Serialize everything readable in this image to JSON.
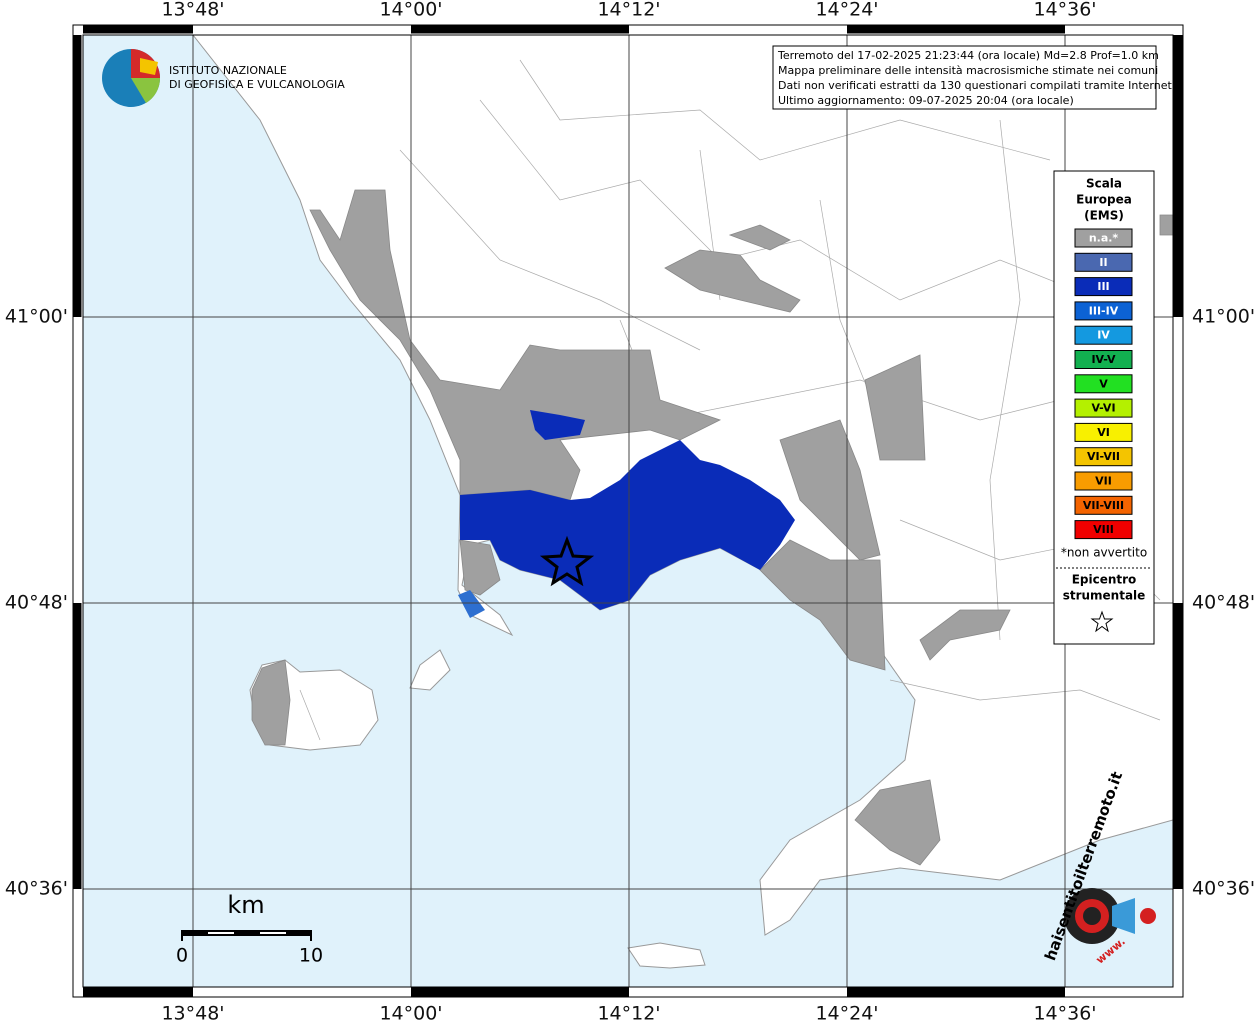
{
  "header": {
    "lines": [
      "Terremoto del 17-02-2025 21:23:44 (ora locale) Md=2.8 Prof=1.0 km",
      "Mappa preliminare delle intensità macrosismiche stimate nei comuni",
      "Dati non verificati estratti da 130 questionari compilati tramite Internet.",
      "Ultimo aggiornamento: 09-07-2025 20:04 (ora locale)"
    ]
  },
  "logo": {
    "lines": [
      "ISTITUTO NAZIONALE",
      "DI GEOFISICA E VULCANOLOGIA"
    ]
  },
  "longitudes": [
    "13°48'",
    "14°00'",
    "14°12'",
    "14°24'",
    "14°36'"
  ],
  "latitudes": [
    "41°00'",
    "40°48'",
    "40°36'"
  ],
  "legend": {
    "title": [
      "Scala",
      "Europea",
      "(EMS)"
    ],
    "items": [
      {
        "label": "n.a.*",
        "color": "#a0a0a0"
      },
      {
        "label": "II",
        "color": "#4a68b0"
      },
      {
        "label": "III",
        "color": "#0a2cb8"
      },
      {
        "label": "III-IV",
        "color": "#0c62d4"
      },
      {
        "label": "IV",
        "color": "#1499e0"
      },
      {
        "label": "IV-V",
        "color": "#12b050"
      },
      {
        "label": "V",
        "color": "#22e022"
      },
      {
        "label": "V-VI",
        "color": "#b4f000"
      },
      {
        "label": "VI",
        "color": "#f8f000"
      },
      {
        "label": "VI-VII",
        "color": "#f4c400"
      },
      {
        "label": "VII",
        "color": "#f89c00"
      },
      {
        "label": "VII-VIII",
        "color": "#f46400"
      },
      {
        "label": "VIII",
        "color": "#f00000"
      }
    ],
    "note": "*non avvertito",
    "epicenter": [
      "Epicentro",
      "strumentale"
    ]
  },
  "scale": {
    "unit": "km",
    "labels": [
      "0",
      "10"
    ]
  },
  "badge": {
    "text": "haisentitoilterremoto.it",
    "www": "www."
  }
}
